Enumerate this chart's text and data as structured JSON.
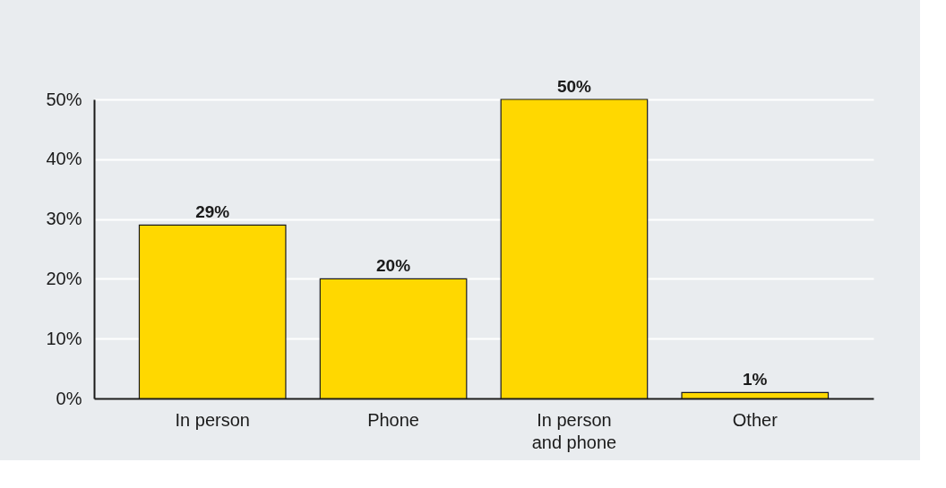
{
  "chart_data": {
    "type": "bar",
    "categories": [
      "In person",
      "Phone",
      "In person and phone",
      "Other"
    ],
    "values": [
      29,
      20,
      50,
      1
    ],
    "color": "#ffd800",
    "ylim": [
      0,
      50
    ],
    "yticks": [
      {
        "value": 0,
        "label": "0%"
      },
      {
        "value": 10,
        "label": "10%"
      },
      {
        "value": 20,
        "label": "20%"
      },
      {
        "value": 30,
        "label": "30%"
      },
      {
        "value": 40,
        "label": "40%"
      },
      {
        "value": 50,
        "label": "50%"
      }
    ],
    "value_labels": [
      "29%",
      "20%",
      "50%",
      "1%"
    ],
    "grid": "y"
  }
}
